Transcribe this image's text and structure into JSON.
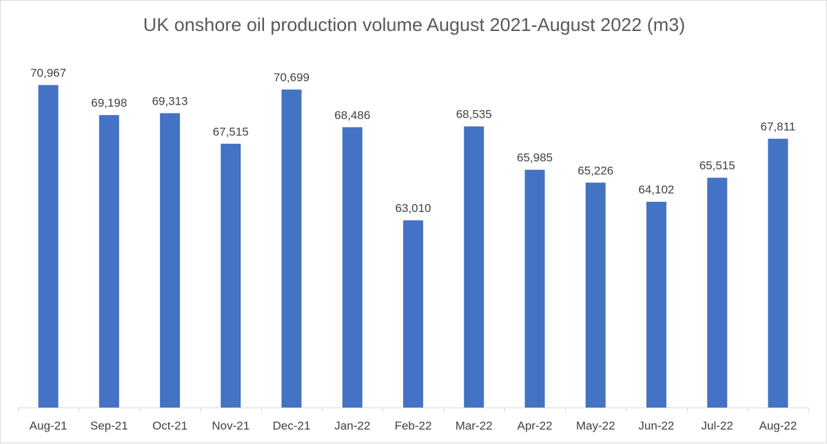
{
  "chart_data": {
    "type": "bar",
    "title": "UK onshore oil production volume August 2021-August 2022 (m3)",
    "xlabel": "",
    "ylabel": "",
    "categories": [
      "Aug-21",
      "Sep-21",
      "Oct-21",
      "Nov-21",
      "Dec-21",
      "Jan-22",
      "Feb-22",
      "Mar-22",
      "Apr-22",
      "May-22",
      "Jun-22",
      "Jul-22",
      "Aug-22"
    ],
    "values": [
      70967,
      69198,
      69313,
      67515,
      70699,
      68486,
      63010,
      68535,
      65985,
      65226,
      64102,
      65515,
      67811
    ],
    "value_labels": [
      "70,967",
      "69,198",
      "69,313",
      "67,515",
      "70,699",
      "68,486",
      "63,010",
      "68,535",
      "65,985",
      "65,226",
      "64,102",
      "65,515",
      "67,811"
    ],
    "ylim": [
      52000,
      72000
    ],
    "grid": false,
    "legend": "none",
    "bar_color": "#4472c4"
  }
}
